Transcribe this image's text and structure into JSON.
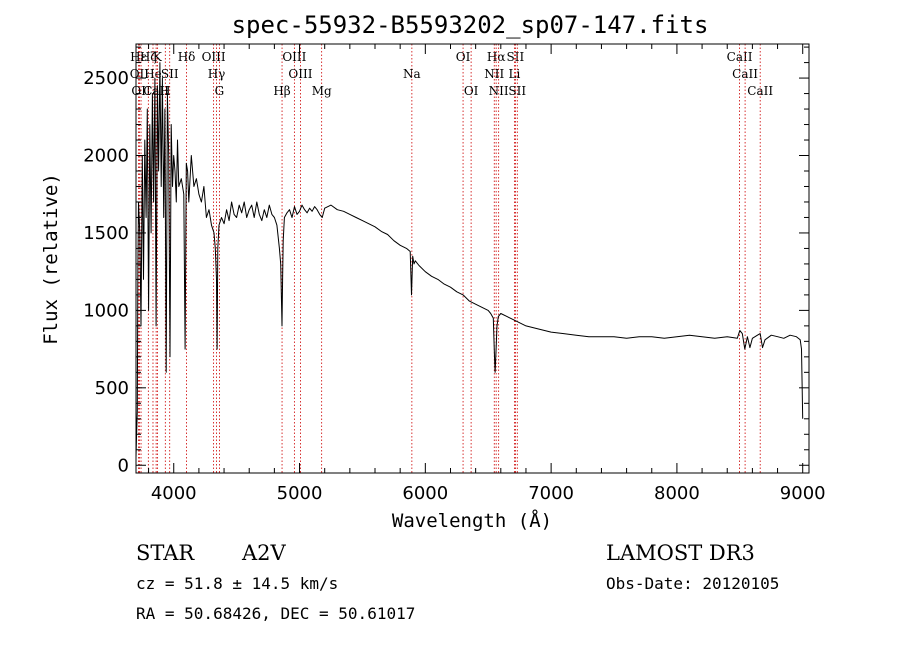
{
  "chart_data": {
    "type": "line",
    "title": "spec-55932-B5593202_sp07-147.fits",
    "xlabel": "Wavelength (Å)",
    "ylabel": "Flux (relative)",
    "xlim": [
      3700,
      9050
    ],
    "ylim": [
      -50,
      2720
    ],
    "xticks": [
      4000,
      5000,
      6000,
      7000,
      8000,
      9000
    ],
    "yticks": [
      0,
      500,
      1000,
      1500,
      2000,
      2500
    ],
    "spectrum": {
      "x": [
        3700,
        3705,
        3710,
        3715,
        3720,
        3730,
        3740,
        3750,
        3760,
        3770,
        3780,
        3790,
        3800,
        3810,
        3820,
        3830,
        3840,
        3850,
        3860,
        3870,
        3880,
        3890,
        3900,
        3910,
        3920,
        3930,
        3940,
        3950,
        3960,
        3970,
        3980,
        3990,
        4000,
        4010,
        4020,
        4030,
        4040,
        4060,
        4080,
        4090,
        4100,
        4110,
        4120,
        4140,
        4160,
        4180,
        4200,
        4220,
        4240,
        4260,
        4280,
        4300,
        4320,
        4330,
        4340,
        4345,
        4350,
        4360,
        4380,
        4400,
        4420,
        4440,
        4460,
        4480,
        4500,
        4520,
        4540,
        4560,
        4580,
        4600,
        4620,
        4640,
        4660,
        4680,
        4700,
        4720,
        4740,
        4760,
        4780,
        4800,
        4820,
        4840,
        4850,
        4861,
        4865,
        4870,
        4880,
        4900,
        4920,
        4940,
        4960,
        4980,
        5000,
        5020,
        5040,
        5060,
        5080,
        5100,
        5120,
        5140,
        5160,
        5180,
        5200,
        5250,
        5300,
        5350,
        5400,
        5450,
        5500,
        5550,
        5600,
        5650,
        5700,
        5750,
        5800,
        5850,
        5880,
        5890,
        5900,
        5910,
        5920,
        5950,
        6000,
        6050,
        6100,
        6150,
        6200,
        6250,
        6300,
        6350,
        6400,
        6450,
        6500,
        6520,
        6540,
        6550,
        6555,
        6563,
        6570,
        6580,
        6600,
        6650,
        6700,
        6750,
        6800,
        6900,
        7000,
        7100,
        7200,
        7300,
        7400,
        7500,
        7600,
        7700,
        7800,
        7900,
        8000,
        8100,
        8200,
        8300,
        8400,
        8480,
        8500,
        8520,
        8540,
        8560,
        8580,
        8600,
        8640,
        8662,
        8680,
        8700,
        8750,
        8800,
        8850,
        8900,
        8950,
        8980,
        8990,
        9000
      ],
      "y": [
        50,
        200,
        350,
        1300,
        1700,
        1500,
        900,
        2000,
        1200,
        2100,
        1600,
        2300,
        1000,
        2200,
        1500,
        2400,
        1700,
        2500,
        900,
        2450,
        1900,
        2600,
        1800,
        2500,
        1600,
        2300,
        600,
        2400,
        2000,
        700,
        2200,
        1800,
        2000,
        1900,
        1700,
        2100,
        1800,
        1850,
        1750,
        750,
        1950,
        1900,
        1700,
        2000,
        1800,
        1850,
        1750,
        1700,
        1800,
        1600,
        1650,
        1550,
        1500,
        1400,
        1200,
        750,
        1400,
        1550,
        1600,
        1560,
        1650,
        1580,
        1700,
        1620,
        1600,
        1680,
        1630,
        1700,
        1600,
        1650,
        1680,
        1600,
        1700,
        1620,
        1580,
        1650,
        1600,
        1680,
        1620,
        1600,
        1550,
        1400,
        1300,
        900,
        1200,
        1450,
        1600,
        1630,
        1650,
        1600,
        1670,
        1620,
        1640,
        1680,
        1650,
        1630,
        1660,
        1640,
        1670,
        1650,
        1620,
        1600,
        1660,
        1680,
        1650,
        1640,
        1620,
        1600,
        1580,
        1560,
        1540,
        1510,
        1490,
        1450,
        1420,
        1400,
        1380,
        1100,
        1350,
        1300,
        1320,
        1290,
        1250,
        1220,
        1200,
        1170,
        1150,
        1120,
        1100,
        1060,
        1040,
        1020,
        1000,
        980,
        950,
        700,
        600,
        750,
        900,
        960,
        980,
        960,
        940,
        920,
        900,
        880,
        860,
        850,
        840,
        830,
        830,
        830,
        820,
        830,
        830,
        820,
        830,
        840,
        830,
        820,
        830,
        820,
        870,
        850,
        750,
        830,
        760,
        820,
        840,
        850,
        760,
        810,
        840,
        830,
        820,
        840,
        830,
        810,
        750,
        300
      ]
    },
    "lines": [
      {
        "label": "Hε",
        "wl": 3720,
        "row": 1
      },
      {
        "label": "OII",
        "wl": 3727,
        "row": 2
      },
      {
        "label": "OII",
        "wl": 3740,
        "row": 3
      },
      {
        "label": "Hζ",
        "wl": 3798,
        "row": 1
      },
      {
        "label": "He",
        "wl": 3835,
        "row": 2
      },
      {
        "label": "CaII",
        "wl": 3860,
        "row": 3
      },
      {
        "label": "K",
        "wl": 3870,
        "row": 1
      },
      {
        "label": "H",
        "wl": 3933,
        "row": 3
      },
      {
        "label": "SII",
        "wl": 3968,
        "row": 2
      },
      {
        "label": "Hδ",
        "wl": 4102,
        "row": 1
      },
      {
        "label": "OIII",
        "wl": 4317,
        "row": 1
      },
      {
        "label": "Hγ",
        "wl": 4340,
        "row": 2
      },
      {
        "label": "G",
        "wl": 4363,
        "row": 3
      },
      {
        "label": "Hβ",
        "wl": 4861,
        "row": 3
      },
      {
        "label": "OIII",
        "wl": 4959,
        "row": 1
      },
      {
        "label": "OIII",
        "wl": 5007,
        "row": 2
      },
      {
        "label": "Mg",
        "wl": 5176,
        "row": 3
      },
      {
        "label": "Na",
        "wl": 5893,
        "row": 2
      },
      {
        "label": "OI",
        "wl": 6300,
        "row": 1
      },
      {
        "label": "OI",
        "wl": 6364,
        "row": 3
      },
      {
        "label": "Hα",
        "wl": 6563,
        "row": 1
      },
      {
        "label": "NII",
        "wl": 6548,
        "row": 2
      },
      {
        "label": "NII",
        "wl": 6583,
        "row": 3
      },
      {
        "label": "SII",
        "wl": 6716,
        "row": 1
      },
      {
        "label": "Li",
        "wl": 6708,
        "row": 2
      },
      {
        "label": "SII",
        "wl": 6731,
        "row": 3
      },
      {
        "label": "CaII",
        "wl": 8498,
        "row": 1
      },
      {
        "label": "CaII",
        "wl": 8542,
        "row": 2
      },
      {
        "label": "CaII",
        "wl": 8662,
        "row": 3
      }
    ],
    "line_color": "#cc0000",
    "spectrum_color": "#000000"
  },
  "footer": {
    "object_class": "STAR",
    "subclass": "A2V",
    "cz": "cz = 51.8 ± 14.5 km/s",
    "coords": "RA =  50.68426, DEC =  50.61017",
    "survey": "LAMOST DR3",
    "obs_date": "Obs-Date: 20120105"
  }
}
